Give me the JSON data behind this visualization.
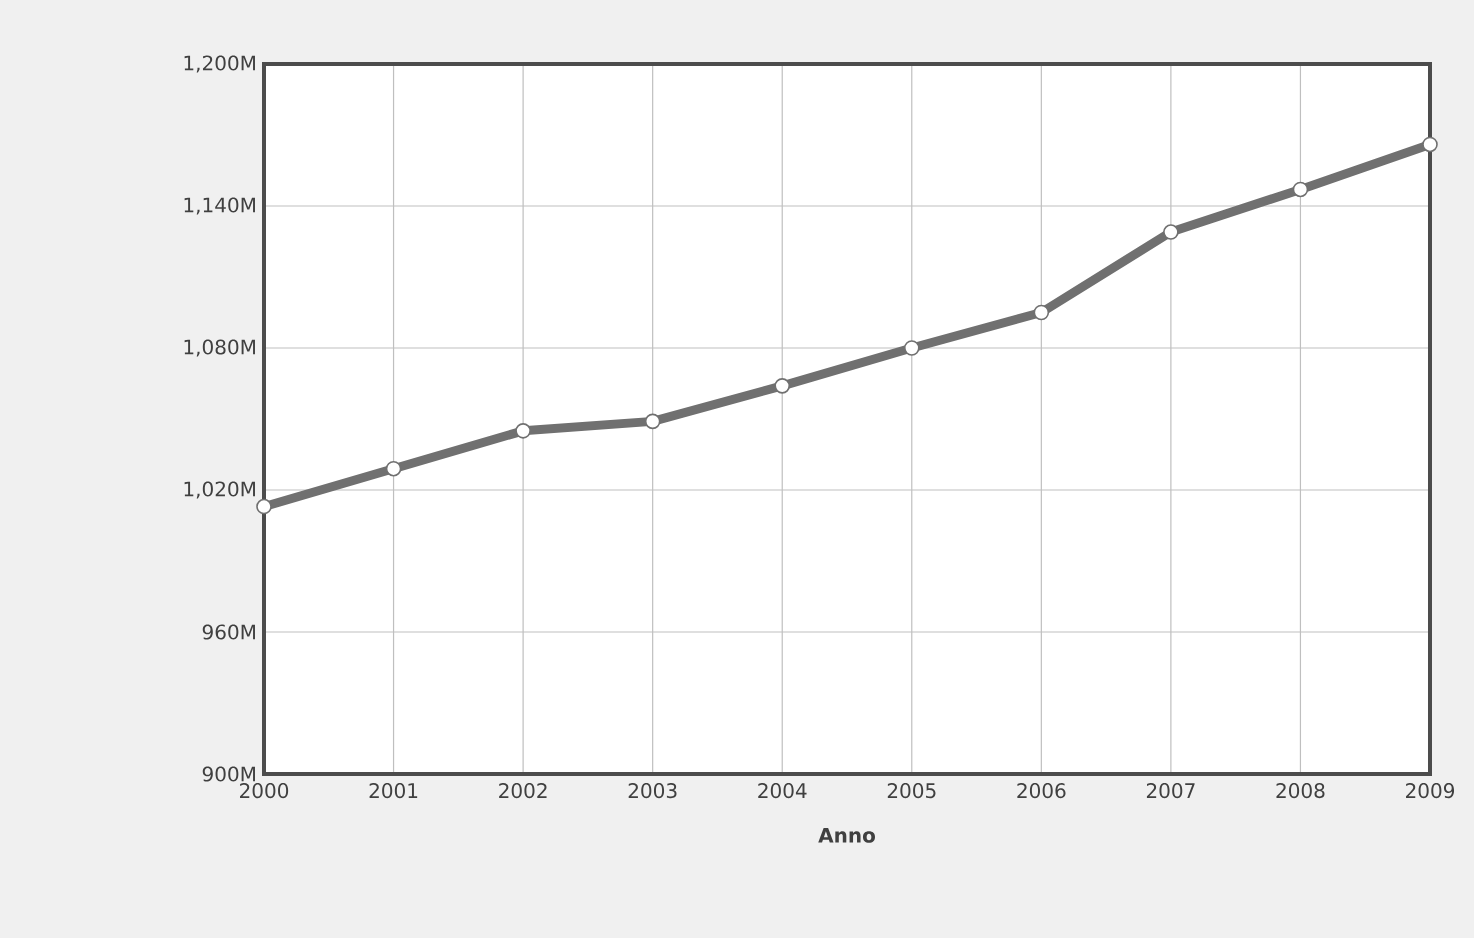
{
  "chart_data": {
    "type": "line",
    "xlabel": "Anno",
    "x": [
      2000,
      2001,
      2002,
      2003,
      2004,
      2005,
      2006,
      2007,
      2008,
      2009
    ],
    "series": [
      {
        "color": "#707070",
        "values": [
          1013,
          1029,
          1045,
          1049,
          1064,
          1080,
          1095,
          1129,
          1147,
          1166
        ]
      }
    ],
    "xlim": [
      2000,
      2009
    ],
    "xticks": [
      2000,
      2001,
      2002,
      2003,
      2004,
      2005,
      2006,
      2007,
      2008,
      2009
    ],
    "ylim": [
      900,
      1200
    ],
    "yticks": [
      {
        "value": 900,
        "label": "900M"
      },
      {
        "value": 960,
        "label": "960M"
      },
      {
        "value": 1020,
        "label": "1,020M"
      },
      {
        "value": 1080,
        "label": "1,080M"
      },
      {
        "value": 1140,
        "label": "1,140M"
      },
      {
        "value": 1200,
        "label": "1,200M"
      }
    ],
    "grid": true,
    "marker": "circle",
    "line_style": "solid"
  }
}
